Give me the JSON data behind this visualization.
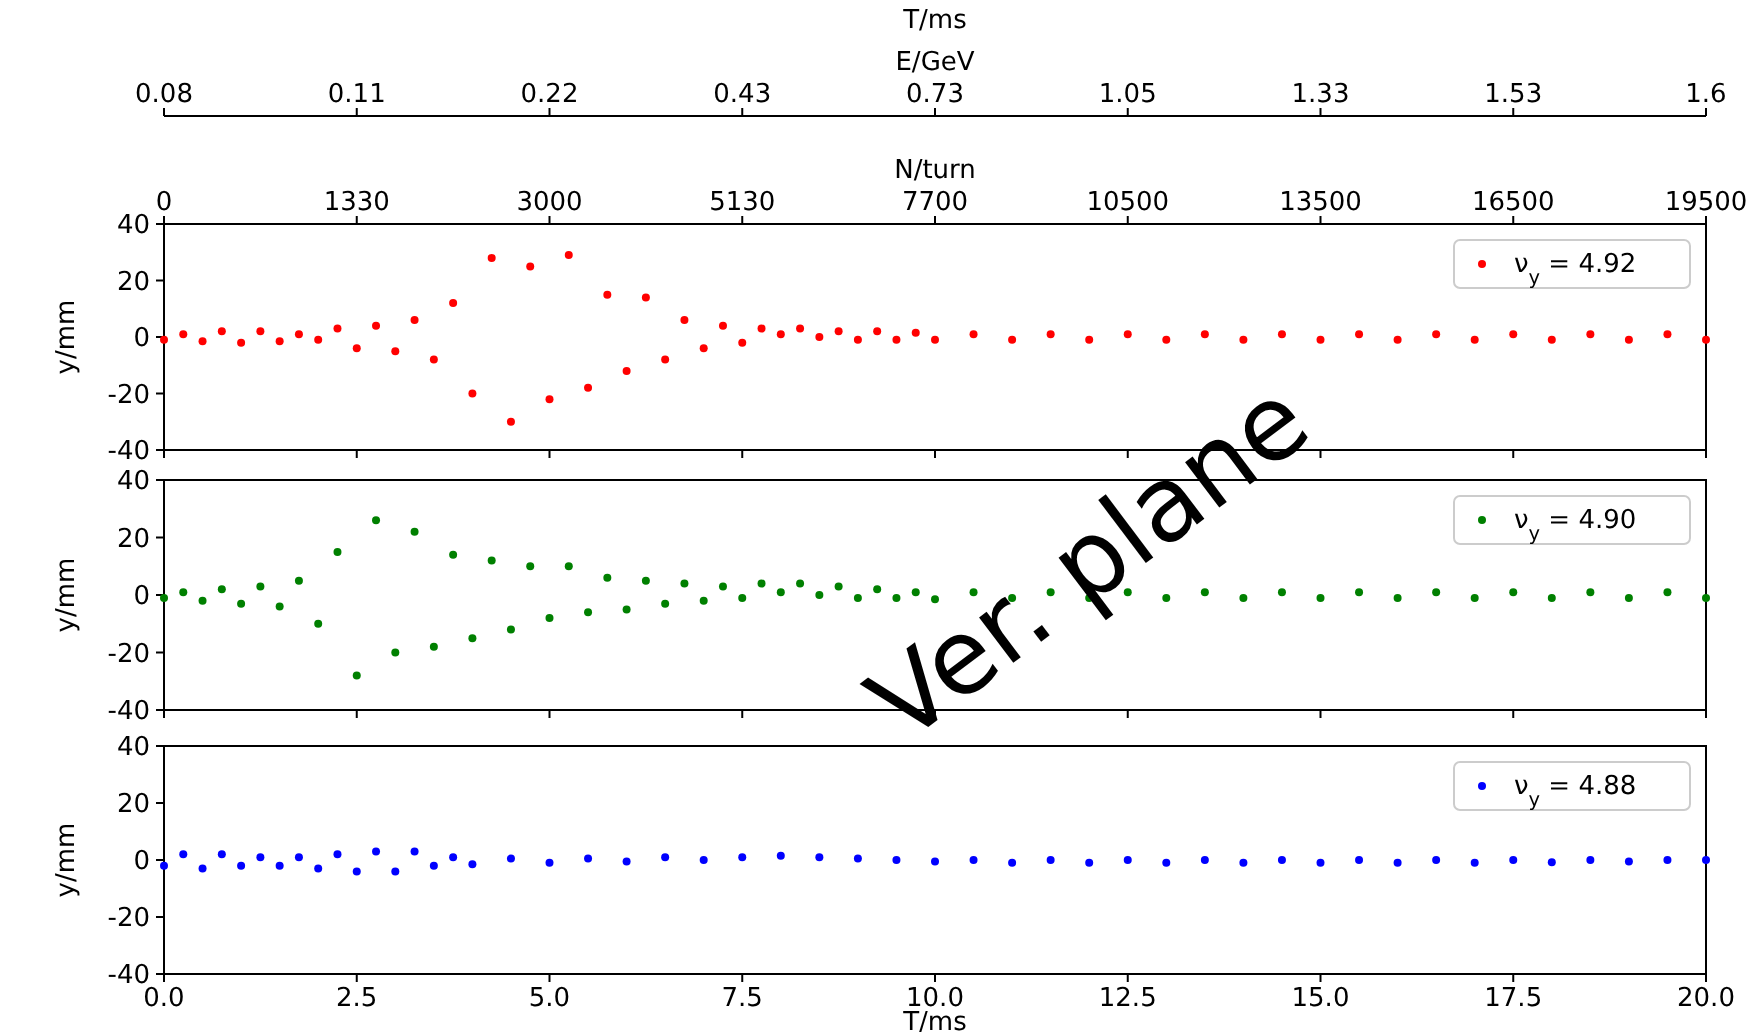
{
  "chart_data": [
    {
      "type": "other",
      "title": "T/ms",
      "xlabel": "E/GeV",
      "categories": [
        "0.08",
        "0.11",
        "0.22",
        "0.43",
        "0.73",
        "1.05",
        "1.33",
        "1.53",
        "1.6"
      ]
    },
    {
      "type": "other",
      "xlabel": "N/turn",
      "categories": [
        "0",
        "1330",
        "3000",
        "5130",
        "7700",
        "10500",
        "13500",
        "16500",
        "19500"
      ]
    },
    {
      "type": "scatter",
      "ylabel": "y/mm",
      "xlim": [
        0,
        20
      ],
      "xticks": [
        0,
        2.5,
        5,
        7.5,
        10,
        12.5,
        15,
        17.5,
        20
      ],
      "ylim": [
        -40,
        40
      ],
      "yticks": [
        -40,
        -20,
        0,
        20,
        40
      ],
      "tick_labels": "y",
      "marker": "circle",
      "legend": "top right",
      "series": [
        {
          "name": "ν$_{y}$ = 4.92",
          "color": "#ff0000",
          "x": [
            0,
            0.25,
            0.5,
            0.75,
            1,
            1.25,
            1.5,
            1.75,
            2,
            2.25,
            2.5,
            2.75,
            3,
            3.25,
            3.5,
            3.75,
            4,
            4.25,
            4.5,
            4.75,
            5,
            5.25,
            5.5,
            5.75,
            6,
            6.25,
            6.5,
            6.75,
            7,
            7.25,
            7.5,
            7.75,
            8,
            8.25,
            8.5,
            8.75,
            9,
            9.25,
            9.5,
            9.75,
            10,
            10.5,
            11,
            11.5,
            12,
            12.5,
            13,
            13.5,
            14,
            14.5,
            15,
            15.5,
            16,
            16.5,
            17,
            17.5,
            18,
            18.5,
            19,
            19.5,
            20
          ],
          "values": [
            -1,
            1,
            -1.5,
            2,
            -2,
            2,
            -1.5,
            1,
            -1,
            3,
            -4,
            4,
            -5,
            6,
            -8,
            12,
            -20,
            28,
            -30,
            25,
            -22,
            29,
            -18,
            15,
            -12,
            14,
            -8,
            6,
            -4,
            4,
            -2,
            3,
            1,
            3,
            0,
            2,
            -1,
            2,
            -1,
            1.5,
            -1,
            1,
            -1,
            1,
            -1,
            1,
            -1,
            1,
            -1,
            1,
            -1,
            1,
            -1,
            1,
            -1,
            1,
            -1,
            1,
            -1,
            1,
            -1
          ]
        }
      ]
    },
    {
      "type": "scatter",
      "ylabel": "y/mm",
      "xlim": [
        0,
        20
      ],
      "xticks": [
        0,
        2.5,
        5,
        7.5,
        10,
        12.5,
        15,
        17.5,
        20
      ],
      "ylim": [
        -40,
        40
      ],
      "yticks": [
        -40,
        -20,
        0,
        20,
        40
      ],
      "tick_labels": "y",
      "marker": "circle",
      "legend": "top right",
      "annotations": [
        "Ver. plane"
      ],
      "series": [
        {
          "name": "ν$_{y}$ = 4.90",
          "color": "#008000",
          "x": [
            0,
            0.25,
            0.5,
            0.75,
            1,
            1.25,
            1.5,
            1.75,
            2,
            2.25,
            2.5,
            2.75,
            3,
            3.25,
            3.5,
            3.75,
            4,
            4.25,
            4.5,
            4.75,
            5,
            5.25,
            5.5,
            5.75,
            6,
            6.25,
            6.5,
            6.75,
            7,
            7.25,
            7.5,
            7.75,
            8,
            8.25,
            8.5,
            8.75,
            9,
            9.25,
            9.5,
            9.75,
            10,
            10.5,
            11,
            11.5,
            12,
            12.5,
            13,
            13.5,
            14,
            14.5,
            15,
            15.5,
            16,
            16.5,
            17,
            17.5,
            18,
            18.5,
            19,
            19.5,
            20
          ],
          "values": [
            -1,
            1,
            -2,
            2,
            -3,
            3,
            -4,
            5,
            -10,
            15,
            -28,
            26,
            -20,
            22,
            -18,
            14,
            -15,
            12,
            -12,
            10,
            -8,
            10,
            -6,
            6,
            -5,
            5,
            -3,
            4,
            -2,
            3,
            -1,
            4,
            1,
            4,
            0,
            3,
            -1,
            2,
            -1,
            1,
            -1.5,
            1,
            -1,
            1,
            -1,
            1,
            -1,
            1,
            -1,
            1,
            -1,
            1,
            -1,
            1,
            -1,
            1,
            -1,
            1,
            -1,
            1,
            -1
          ]
        }
      ]
    },
    {
      "type": "scatter",
      "ylabel": "y/mm",
      "xlabel": "T/ms",
      "xlim": [
        0,
        20
      ],
      "xticks": [
        {
          "value": 0,
          "label": "0.0"
        },
        {
          "value": 2.5,
          "label": "2.5"
        },
        {
          "value": 5,
          "label": "5.0"
        },
        {
          "value": 7.5,
          "label": "7.5"
        },
        {
          "value": 10,
          "label": "10.0"
        },
        {
          "value": 12.5,
          "label": "12.5"
        },
        {
          "value": 15,
          "label": "15.0"
        },
        {
          "value": 17.5,
          "label": "17.5"
        },
        {
          "value": 20,
          "label": "20.0"
        }
      ],
      "ylim": [
        -40,
        40
      ],
      "yticks": [
        -40,
        -20,
        0,
        20,
        40
      ],
      "marker": "circle",
      "legend": "top right",
      "series": [
        {
          "name": "ν$_{y}$ = 4.88",
          "color": "#0000ff",
          "x": [
            0,
            0.25,
            0.5,
            0.75,
            1,
            1.25,
            1.5,
            1.75,
            2,
            2.25,
            2.5,
            2.75,
            3,
            3.25,
            3.5,
            3.75,
            4,
            4.5,
            5,
            5.5,
            6,
            6.5,
            7,
            7.5,
            8,
            8.5,
            9,
            9.5,
            10,
            10.5,
            11,
            11.5,
            12,
            12.5,
            13,
            13.5,
            14,
            14.5,
            15,
            15.5,
            16,
            16.5,
            17,
            17.5,
            18,
            18.5,
            19,
            19.5,
            20
          ],
          "values": [
            -2,
            2,
            -3,
            2,
            -2,
            1,
            -2,
            1,
            -3,
            2,
            -4,
            3,
            -4,
            3,
            -2,
            1,
            -1.5,
            0.5,
            -1,
            0.5,
            -0.5,
            1,
            0,
            1,
            1.5,
            1,
            0.5,
            0,
            -0.5,
            0,
            -1,
            0,
            -1,
            0,
            -1,
            0,
            -1,
            0,
            -1,
            0,
            -1,
            0,
            -1,
            0,
            -0.8,
            0,
            -0.5,
            0,
            0
          ]
        }
      ]
    }
  ]
}
